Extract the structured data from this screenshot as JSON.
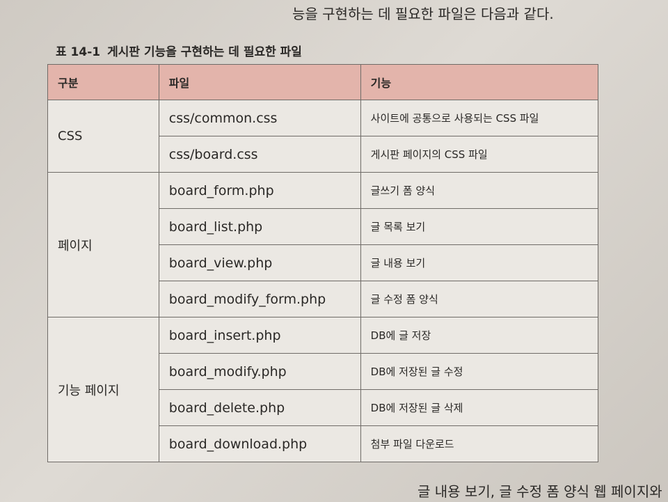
{
  "intro": "능을 구현하는 데 필요한 파일은 다음과 같다.",
  "table": {
    "caption_label": "표 14-1",
    "caption": "게시판 기능을 구현하는 데 필요한 파일",
    "headers": [
      "구분",
      "파일",
      "기능"
    ],
    "groups": [
      {
        "name": "CSS",
        "rows": [
          [
            "css/common.css",
            "사이트에 공통으로 사용되는 CSS 파일"
          ],
          [
            "css/board.css",
            "게시판 페이지의 CSS 파일"
          ]
        ]
      },
      {
        "name": "페이지",
        "rows": [
          [
            "board_form.php",
            "글쓰기 폼 양식"
          ],
          [
            "board_list.php",
            "글 목록 보기"
          ],
          [
            "board_view.php",
            "글 내용 보기"
          ],
          [
            "board_modify_form.php",
            "글 수정 폼 양식"
          ]
        ]
      },
      {
        "name": "기능 페이지",
        "rows": [
          [
            "board_insert.php",
            "DB에 글 저장"
          ],
          [
            "board_modify.php",
            "DB에 저장된 글 수정"
          ],
          [
            "board_delete.php",
            "DB에 저장된 글 삭제"
          ],
          [
            "board_download.php",
            "첨부 파일 다운로드"
          ]
        ]
      }
    ]
  },
  "outro": "글 내용 보기, 글 수정 폼 양식 웹 페이지와"
}
